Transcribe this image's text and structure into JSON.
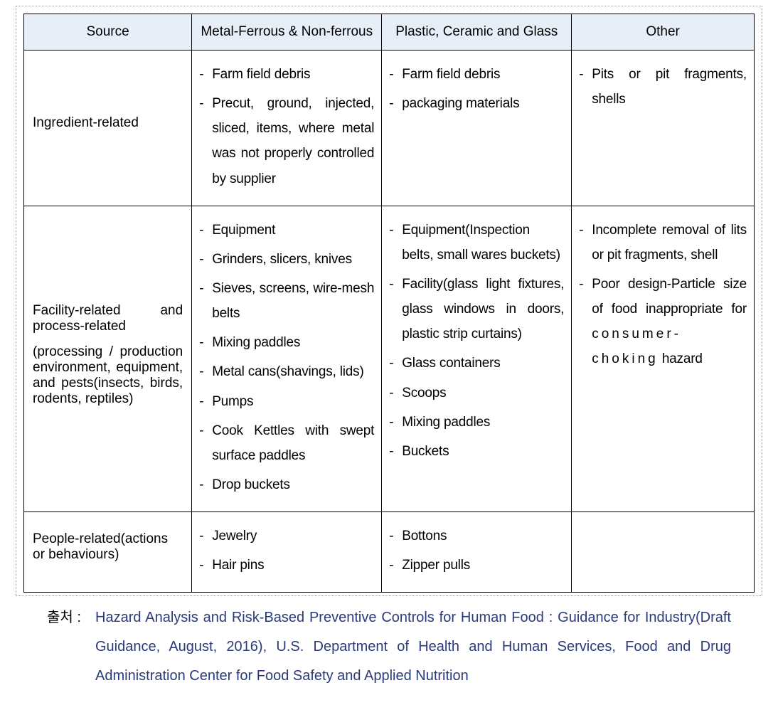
{
  "table": {
    "headers": [
      "Source",
      "Metal-Ferrous & Non-ferrous",
      "Plastic, Ceramic and Glass",
      "Other"
    ],
    "col_widths": [
      "23%",
      "26%",
      "26%",
      "25%"
    ],
    "header_bg": "#e8eef7",
    "border_color": "#000000",
    "font_size_pt": 14,
    "rows": [
      {
        "source_main": "Ingredient-related",
        "source_sub": "",
        "c1": [
          "Farm field debris",
          "Precut, ground, injected, sliced, items, where metal was not properly controlled by supplier"
        ],
        "c2": [
          "Farm field debris",
          "packaging materials"
        ],
        "c3": [
          "Pits or pit fragments, shells"
        ]
      },
      {
        "source_main": "Facility-related and process-related",
        "source_sub": "(processing / production environment, equipment, and pests(insects, birds, rodents, reptiles)",
        "c1": [
          "Equipment",
          "Grinders, slicers, knives",
          "Sieves, screens, wire-mesh belts",
          "Mixing paddles",
          "Metal cans(shavings, lids)",
          "Pumps",
          "Cook Kettles with swept surface paddles",
          "Drop buckets"
        ],
        "c2": [
          "Equipment(Inspection belts, small wares buckets)",
          "Facility(glass light fixtures, glass windows in doors, plastic strip curtains)",
          "Glass containers",
          "Scoops",
          "Mixing paddles",
          "Buckets"
        ],
        "c3": [
          "Incomplete removal of lits or pit fragments, shell",
          "Poor design-Particle size of food inappropriate for consumer-choking hazard"
        ]
      },
      {
        "source_main": "People-related(actions or behaviours)",
        "source_sub": "",
        "c1": [
          "Jewelry",
          "Hair pins"
        ],
        "c2": [
          "Bottons",
          "Zipper pulls"
        ],
        "c3": []
      }
    ]
  },
  "citation": {
    "label": "출처 :",
    "text": "Hazard Analysis and Risk-Based Preventive Controls for Human Food : Guidance for Industry(Draft Guidance, August, 2016), U.S. Department of Health and Human Services, Food and Drug Administration Center for Food Safety and Applied Nutrition",
    "color": "#2a3a7a"
  },
  "outer_border_color": "#8fa8c8",
  "background_color": "#ffffff"
}
